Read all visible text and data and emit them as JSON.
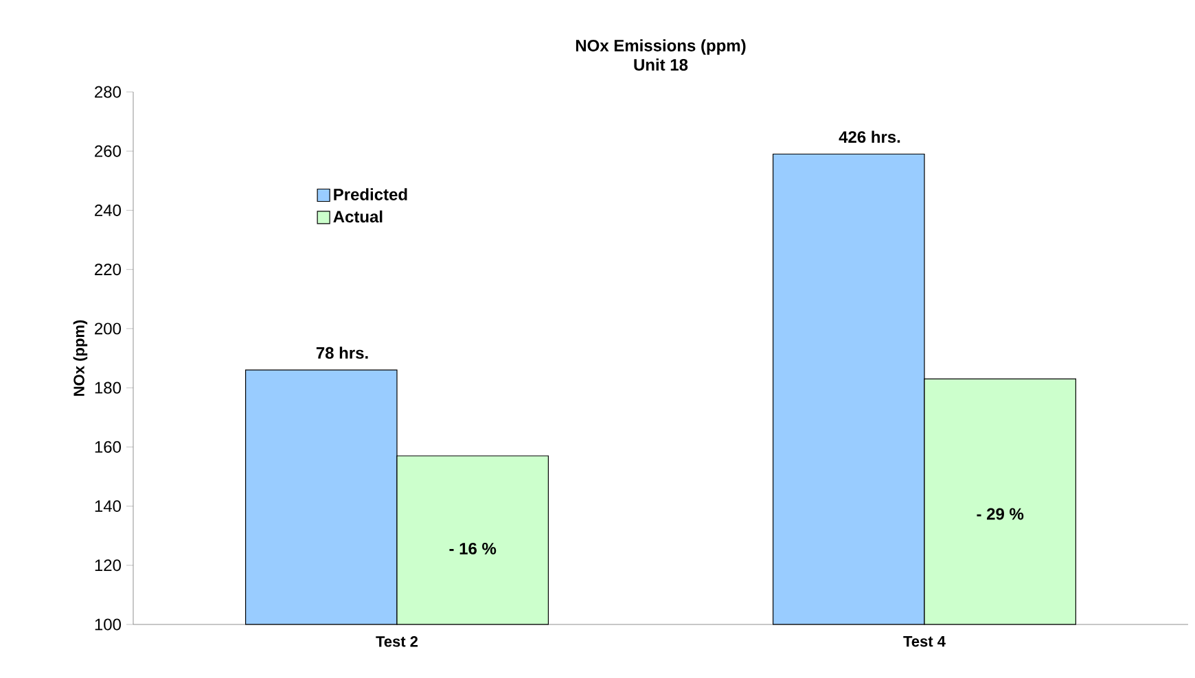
{
  "chart_data": {
    "type": "bar",
    "title": "NOx Emissions (ppm)",
    "subtitle": "Unit 18",
    "ylabel": "NOx (ppm)",
    "categories": [
      "Test 2",
      "Test 4"
    ],
    "series": [
      {
        "name": "Predicted",
        "color": "#99ccff",
        "values": [
          186,
          259
        ]
      },
      {
        "name": "Actual",
        "color": "#ccffcc",
        "values": [
          157,
          183
        ]
      }
    ],
    "ylim": [
      100,
      280
    ],
    "yticks": [
      100,
      120,
      140,
      160,
      180,
      200,
      220,
      240,
      260,
      280
    ],
    "legend": "top left",
    "grid": false,
    "annotations": [
      {
        "text": "78 hrs.",
        "x": "Test 2",
        "y": 186
      },
      "- 16 %",
      {
        "text": "426 hrs.",
        "x": "Test 4",
        "y": 259
      },
      "- 29 %"
    ]
  }
}
